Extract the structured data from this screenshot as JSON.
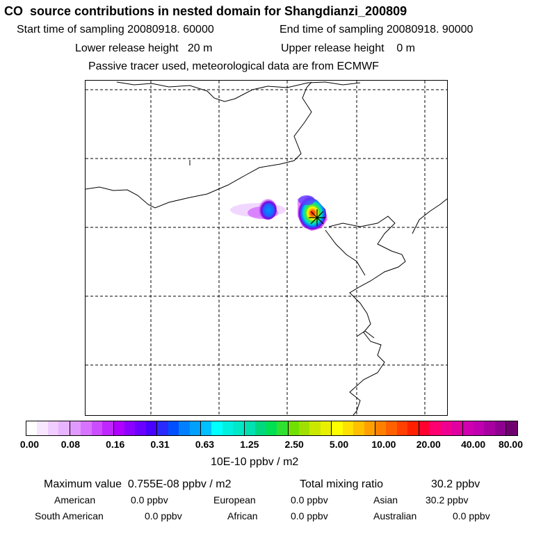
{
  "header": {
    "title": "CO  source contributions in nested domain for Shangdianzi_200809",
    "start_label": "Start time of sampling 20080918. 60000",
    "end_label": "End time of sampling 20080918. 90000",
    "lower_label": "Lower release height   20 m",
    "upper_label": "Upper release height    0 m",
    "tracer_note": "Passive tracer used, meteorological data are from ECMWF"
  },
  "map": {
    "region": "North China / Shangdianzi",
    "marker": "receptor-star",
    "plume_colors": [
      "#e040ff",
      "#7a00e0",
      "#0080ff",
      "#00e0c0",
      "#40e040",
      "#ffff00",
      "#ff8000",
      "#ff0000"
    ]
  },
  "colorbar": {
    "tick_labels": [
      "0.00",
      "0.08",
      "0.16",
      "0.31",
      "0.63",
      "1.25",
      "2.50",
      "5.00",
      "10.00",
      "20.00",
      "40.00",
      "80.00"
    ],
    "colors": [
      "#ffffff",
      "#f8e6ff",
      "#f0ccff",
      "#e8b3ff",
      "#e099ff",
      "#d873ff",
      "#cc4dff",
      "#c026ff",
      "#b000ff",
      "#8c00ff",
      "#6a00ff",
      "#4800ff",
      "#2a2aff",
      "#0050ff",
      "#0080ff",
      "#00a0ff",
      "#00c0ff",
      "#00ffff",
      "#00f0e0",
      "#00e8c8",
      "#00e0b0",
      "#00d880",
      "#00e050",
      "#30e030",
      "#70e000",
      "#a0e000",
      "#c8e800",
      "#e8f000",
      "#ffff00",
      "#ffe000",
      "#ffc000",
      "#ffa000",
      "#ff8000",
      "#ff6000",
      "#ff4000",
      "#ff2000",
      "#ff0030",
      "#ff0070",
      "#f00090",
      "#e000a0",
      "#d000b0",
      "#c000b0",
      "#a800a0",
      "#900090",
      "#700070"
    ],
    "unit_label": "10E-10 ppbv / m2"
  },
  "summary": {
    "max_label": "Maximum value  0.755E-08 ppbv / m2",
    "total_label": "Total mixing ratio",
    "total_value": "30.2 ppbv",
    "regions": [
      {
        "name": "American",
        "value": "0.0 ppbv"
      },
      {
        "name": "European",
        "value": "0.0 ppbv"
      },
      {
        "name": "Asian",
        "value": "30.2 ppbv"
      },
      {
        "name": "South American",
        "value": "0.0 ppbv"
      },
      {
        "name": "African",
        "value": "0.0 ppbv"
      },
      {
        "name": "Australian",
        "value": "0.0 ppbv"
      }
    ]
  }
}
